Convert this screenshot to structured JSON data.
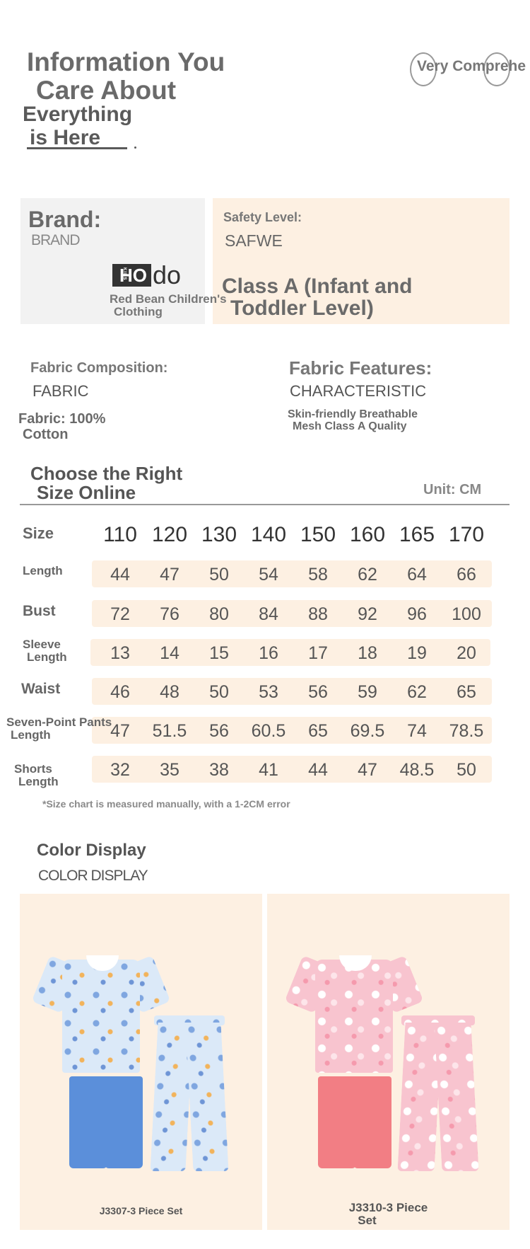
{
  "header": {
    "title_line1": "Information You",
    "title_line2": "Care About",
    "subtitle_line1": "Everything",
    "subtitle_line2": "is Here",
    "badge": "Very Comprehe"
  },
  "brand": {
    "heading": "Brand:",
    "heading_en": "BRAND",
    "logo_box": "HO",
    "logo_kids": "KIDS",
    "logo_tail": "do",
    "name_line1": "Red Bean Children's",
    "name_line2": "Clothing"
  },
  "safety": {
    "heading": "Safety Level:",
    "heading_en": "SAFWE",
    "value_line1": "Class A (Infant and",
    "value_line2": "Toddler Level)"
  },
  "fabric": {
    "heading": "Fabric Composition:",
    "heading_en": "FABRIC",
    "value_line1": "Fabric: 100%",
    "value_line2": "Cotton"
  },
  "features": {
    "heading": "Fabric Features:",
    "heading_en": "CHARACTERISTIC",
    "value_line1": "Skin-friendly Breathable",
    "value_line2": "Mesh Class A Quality"
  },
  "size_section": {
    "heading_line1": "Choose the Right",
    "heading_line2": "Size Online",
    "unit": "Unit: CM",
    "note": "*Size chart is measured manually, with a 1-2CM error"
  },
  "size_table": {
    "header_label": "Size",
    "sizes": [
      "110",
      "120",
      "130",
      "140",
      "150",
      "160",
      "165",
      "170"
    ],
    "rows": [
      {
        "label_line1": "Length",
        "label_line2": "",
        "values": [
          "44",
          "47",
          "50",
          "54",
          "58",
          "62",
          "64",
          "66"
        ]
      },
      {
        "label_line1": "Bust",
        "label_line2": "",
        "values": [
          "72",
          "76",
          "80",
          "84",
          "88",
          "92",
          "96",
          "100"
        ]
      },
      {
        "label_line1": "Sleeve",
        "label_line2": "Length",
        "values": [
          "13",
          "14",
          "15",
          "16",
          "17",
          "18",
          "19",
          "20"
        ]
      },
      {
        "label_line1": "Waist",
        "label_line2": "",
        "values": [
          "46",
          "48",
          "50",
          "53",
          "56",
          "59",
          "62",
          "65"
        ]
      },
      {
        "label_line1": "Seven-Point Pants",
        "label_line2": "Length",
        "values": [
          "47",
          "51.5",
          "56",
          "60.5",
          "65",
          "69.5",
          "74",
          "78.5"
        ]
      },
      {
        "label_line1": "Shorts",
        "label_line2": "Length",
        "values": [
          "32",
          "35",
          "38",
          "41",
          "44",
          "47",
          "48.5",
          "50"
        ]
      }
    ]
  },
  "color_section": {
    "heading": "Color Display",
    "heading_en": "COLOR DISPLAY",
    "products": [
      {
        "caption_line1": "J3307-3 Piece Set",
        "caption_line2": "",
        "print_color": "#dbe9f8",
        "solid_color": "#5b8fda"
      },
      {
        "caption_line1": "J3310-3 Piece",
        "caption_line2": "Set",
        "print_color": "#f8c4cf",
        "solid_color": "#f27e84"
      }
    ]
  },
  "colors": {
    "card_peach": "#fdf0e2",
    "card_gray": "#f2f2f2",
    "text_dark": "#555555"
  }
}
